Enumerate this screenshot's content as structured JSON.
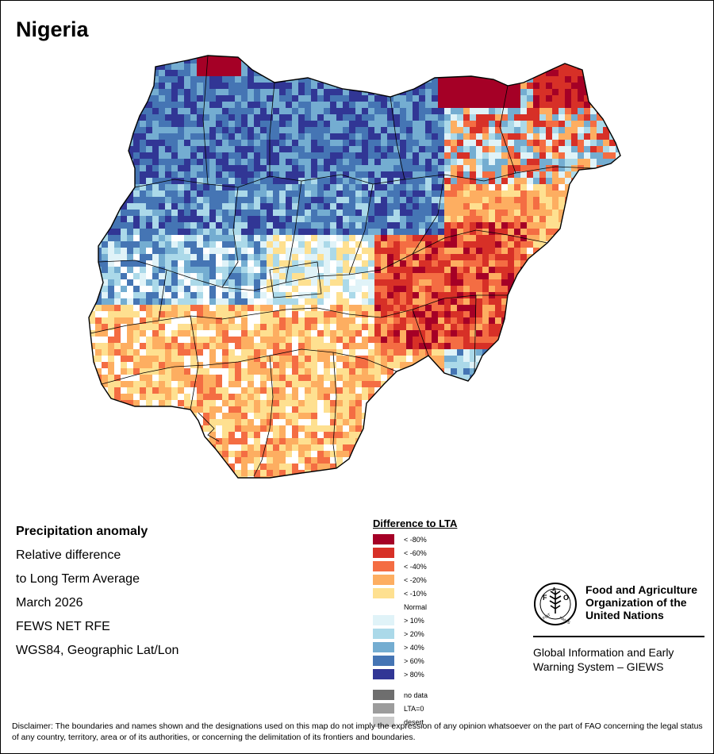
{
  "map": {
    "title": "Nigeria"
  },
  "info": {
    "line1": "Precipitation anomaly",
    "line2": "Relative difference",
    "line3": "to Long Term Average",
    "line4": "March 2026",
    "line5": "FEWS NET RFE",
    "line6": "WGS84, Geographic Lat/Lon"
  },
  "legend": {
    "title": "Difference to LTA",
    "classes": [
      {
        "label": "< -80%",
        "color": "#a50026"
      },
      {
        "label": "< -60%",
        "color": "#d73027"
      },
      {
        "label": "< -40%",
        "color": "#f46d43"
      },
      {
        "label": "< -20%",
        "color": "#fdae61"
      },
      {
        "label": "< -10%",
        "color": "#fee090"
      },
      {
        "label": "Normal",
        "color": "#ffffff"
      },
      {
        "label": "> 10%",
        "color": "#e0f3f8"
      },
      {
        "label": "> 20%",
        "color": "#abd9e9"
      },
      {
        "label": "> 40%",
        "color": "#74add1"
      },
      {
        "label": "> 60%",
        "color": "#4575b4"
      },
      {
        "label": "> 80%",
        "color": "#313695"
      }
    ],
    "extra": [
      {
        "label": "no data",
        "color": "#6e6e6e"
      },
      {
        "label": "LTA=0",
        "color": "#9c9c9c"
      },
      {
        "label": "desert",
        "color": "#cccccc"
      }
    ]
  },
  "fao": {
    "logo_text": "FAO",
    "logo_motto": "FIAT PANIS",
    "name_line1": "Food and Agriculture",
    "name_line2": "Organization of the",
    "name_line3": "United Nations",
    "giews_line1": "Global Information and Early",
    "giews_line2": "Warning System – GIEWS"
  },
  "disclaimer": "Disclaimer: The boundaries and names shown and the designations used on this map do not imply the expression of any opinion whatsoever on the part of FAO concerning the legal status of any country, territory, area or of its authorities, or concerning the delimitation of its frontiers and boundaries."
}
